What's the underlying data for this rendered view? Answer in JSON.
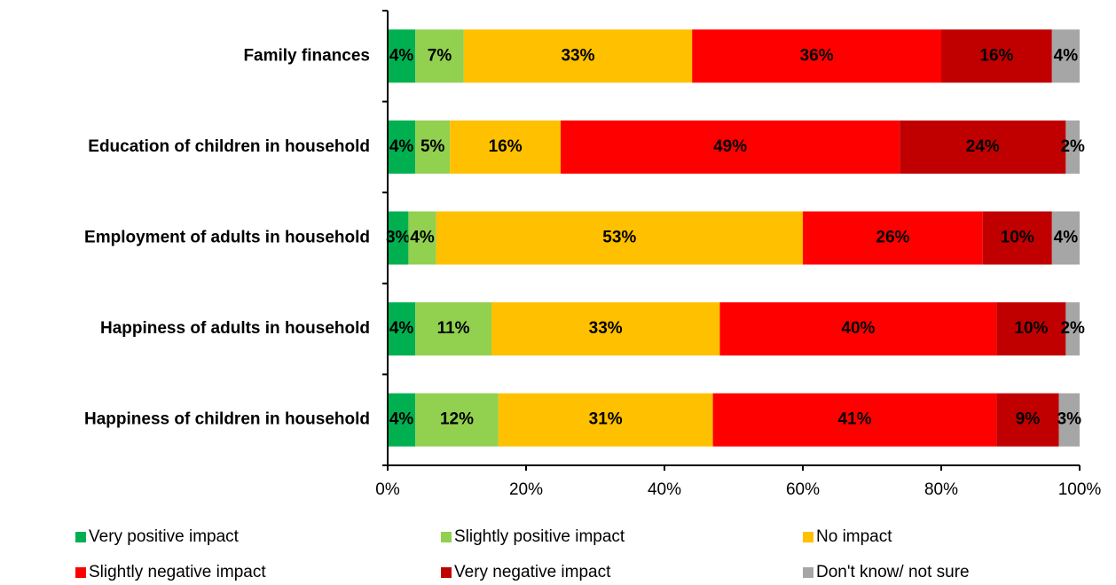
{
  "chart_data": {
    "type": "stacked-bar-horizontal",
    "categories": [
      "Family finances",
      "Education of children in household",
      "Employment of adults in household",
      "Happiness of adults in household",
      "Happiness of children in household"
    ],
    "series": [
      {
        "name": "Very positive impact",
        "color": "#00b050",
        "values": [
          4,
          4,
          3,
          4,
          4
        ],
        "value_labels": [
          "4%",
          "4%",
          "3%",
          "4%",
          "4%"
        ]
      },
      {
        "name": "Slightly positive impact",
        "color": "#92d050",
        "values": [
          7,
          5,
          4,
          11,
          12
        ],
        "value_labels": [
          "7%",
          "5%",
          "4%",
          "11%",
          "12%"
        ]
      },
      {
        "name": "No impact",
        "color": "#ffc000",
        "values": [
          33,
          16,
          53,
          33,
          31
        ],
        "value_labels": [
          "33%",
          "16%",
          "53%",
          "33%",
          "31%"
        ]
      },
      {
        "name": "Slightly negative impact",
        "color": "#ff0000",
        "values": [
          36,
          49,
          26,
          40,
          41
        ],
        "value_labels": [
          "36%",
          "49%",
          "26%",
          "40%",
          "41%"
        ]
      },
      {
        "name": "Very negative impact",
        "color": "#c00000",
        "values": [
          16,
          24,
          10,
          10,
          9
        ],
        "value_labels": [
          "16%",
          "24%",
          "10%",
          "10%",
          "9%"
        ]
      },
      {
        "name": "Don't know/ not sure",
        "color": "#a6a6a6",
        "values": [
          4,
          2,
          4,
          2,
          3
        ],
        "value_labels": [
          "4%",
          "2%",
          "4%",
          "2%",
          "3%"
        ]
      }
    ],
    "xlim": [
      0,
      100
    ],
    "xticks": [
      {
        "value": 0,
        "label": "0%"
      },
      {
        "value": 20,
        "label": "20%"
      },
      {
        "value": 40,
        "label": "40%"
      },
      {
        "value": 60,
        "label": "60%"
      },
      {
        "value": 80,
        "label": "80%"
      },
      {
        "value": 100,
        "label": "100%"
      }
    ]
  }
}
